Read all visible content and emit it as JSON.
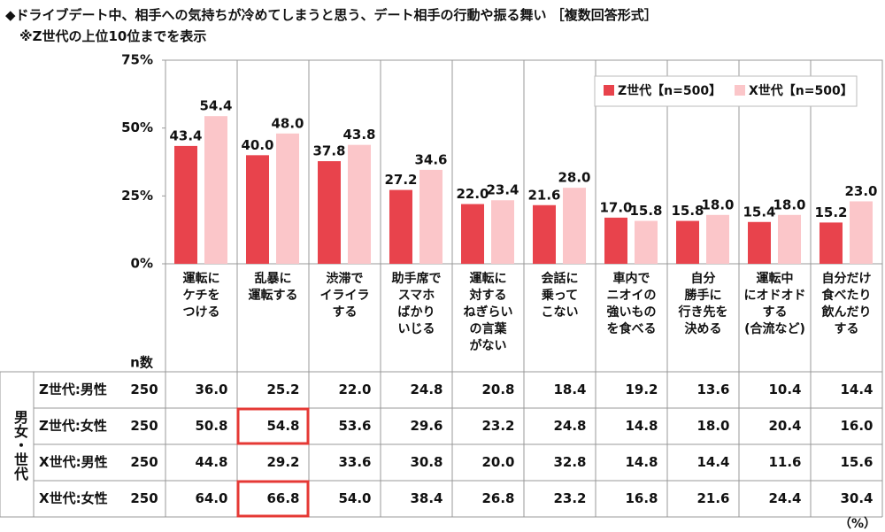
{
  "chart_data": {
    "type": "bar",
    "title": "◆ドライブデート中、相手への気持ちが冷めてしまうと思う、デート相手の行動や振る舞い ［複数回答形式］",
    "subtitle": "※Z世代の上位10位までを表示",
    "categories": [
      "運転に\nケチを\nつける",
      "乱暴に\n運転する",
      "渋滞で\nイライラ\nする",
      "助手席で\nスマホ\nばかり\nいじる",
      "運転に\n対する\nねぎらい\nの言葉\nがない",
      "会話に\n乗って\nこない",
      "車内で\nニオイの\n強いもの\nを食べる",
      "自分\n勝手に\n行き先を\n決める",
      "運転中\nにオドオド\nする\n(合流など)",
      "自分だけ\n食べたり\n飲んだり\nする"
    ],
    "series": [
      {
        "name": "Z世代【n=500】",
        "color": "#e8434c",
        "values": [
          43.4,
          40.0,
          37.8,
          27.2,
          22.0,
          21.6,
          17.0,
          15.8,
          15.4,
          15.2
        ],
        "value_labels": [
          "43.4",
          "40.0",
          "37.8",
          "27.2",
          "22.0",
          "21.6",
          "17.0",
          "15.8",
          "15.4",
          "15.2"
        ]
      },
      {
        "name": "X世代【n=500】",
        "color": "#fbc6c9",
        "values": [
          54.4,
          48.0,
          43.8,
          34.6,
          23.4,
          28.0,
          15.8,
          18.0,
          18.0,
          23.0
        ],
        "value_labels": [
          "54.4",
          "48.0",
          "43.8",
          "34.6",
          "23.4",
          "28.0",
          "15.8",
          "18.0",
          "18.0",
          "23.0"
        ]
      }
    ],
    "ylim": [
      0,
      75
    ],
    "yticks": [
      {
        "value": 0,
        "label": "0%"
      },
      {
        "value": 25,
        "label": "25%"
      },
      {
        "value": 50,
        "label": "50%"
      },
      {
        "value": 75,
        "label": "75%"
      }
    ],
    "grid": false,
    "legend": "upper right"
  },
  "table": {
    "n_header": "n数",
    "group_label": "男女・世代",
    "unit": "（%）",
    "rows": [
      {
        "label": "Z世代:男性",
        "n": 250,
        "values": [
          "36.0",
          "25.2",
          "22.0",
          "24.8",
          "20.8",
          "18.4",
          "19.2",
          "13.6",
          "10.4",
          "14.4"
        ]
      },
      {
        "label": "Z世代:女性",
        "n": 250,
        "values": [
          "50.8",
          "54.8",
          "53.6",
          "29.6",
          "23.2",
          "24.8",
          "14.8",
          "18.0",
          "20.4",
          "16.0"
        ]
      },
      {
        "label": "X世代:男性",
        "n": 250,
        "values": [
          "44.8",
          "29.2",
          "33.6",
          "30.8",
          "20.0",
          "32.8",
          "14.8",
          "14.4",
          "11.6",
          "15.6"
        ]
      },
      {
        "label": "X世代:女性",
        "n": 250,
        "values": [
          "64.0",
          "66.8",
          "54.0",
          "38.4",
          "26.8",
          "23.2",
          "16.8",
          "21.6",
          "24.4",
          "30.4"
        ]
      }
    ],
    "highlighted_cells": [
      {
        "row": 1,
        "col": 1
      },
      {
        "row": 3,
        "col": 1
      }
    ],
    "highlight_color": "#e53935"
  }
}
